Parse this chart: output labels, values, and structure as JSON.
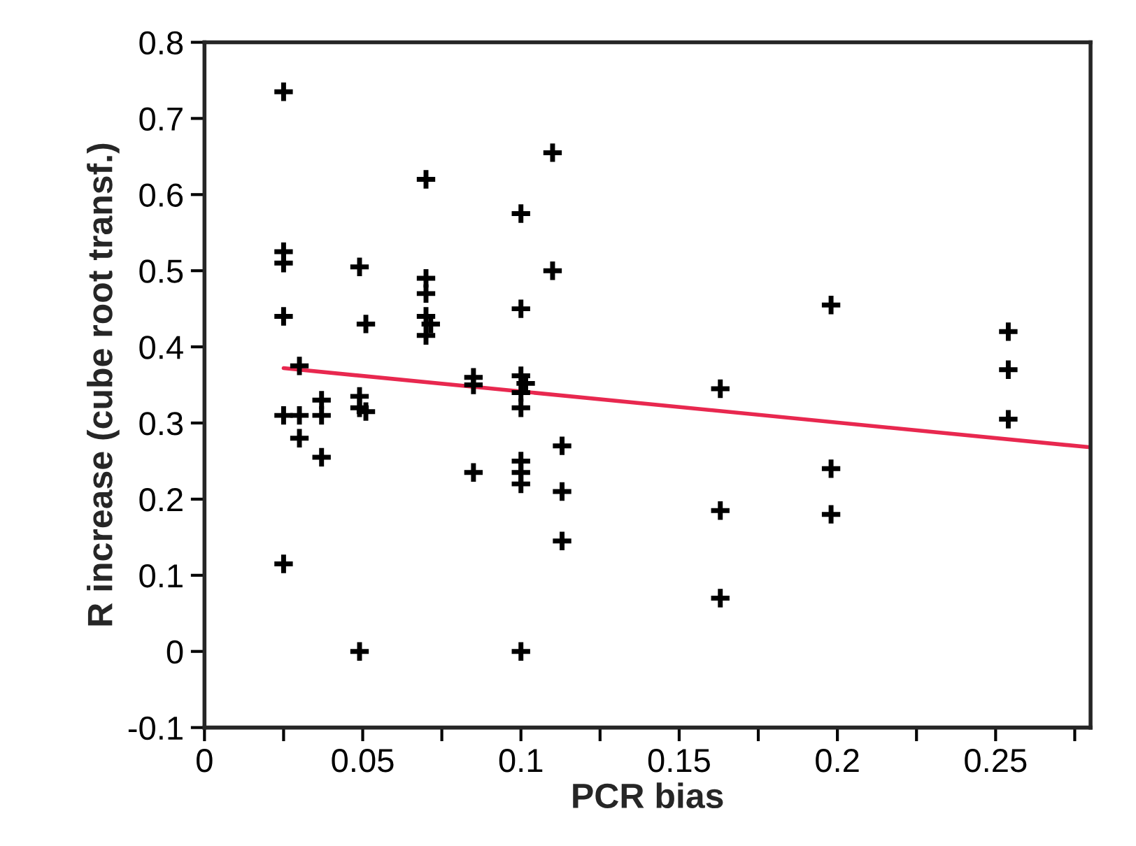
{
  "chart_data": {
    "type": "scatter",
    "xlabel": "PCR bias",
    "ylabel": "R increase (cube root transf.)",
    "xlim": [
      0,
      0.28
    ],
    "ylim": [
      -0.1,
      0.8
    ],
    "xticks": [
      0,
      {
        "value": 0.025,
        "label": null
      },
      0.05,
      {
        "value": 0.075,
        "label": null
      },
      0.1,
      {
        "value": 0.125,
        "label": null
      },
      0.15,
      {
        "value": 0.175,
        "label": null
      },
      0.2,
      {
        "value": 0.225,
        "label": null
      },
      0.25,
      {
        "value": 0.275,
        "label": null
      }
    ],
    "yticks": [
      -0.1,
      0,
      0.1,
      0.2,
      0.3,
      0.4,
      0.5,
      0.6,
      0.7,
      0.8
    ],
    "grid": false,
    "legend": false,
    "series": [
      {
        "type": "scatter",
        "marker": "cross",
        "color": "#000000",
        "x": [
          0.025,
          0.025,
          0.025,
          0.025,
          0.025,
          0.025,
          0.03,
          0.03,
          0.03,
          0.037,
          0.037,
          0.037,
          0.049,
          0.049,
          0.049,
          0.049,
          0.051,
          0.051,
          0.07,
          0.07,
          0.07,
          0.07,
          0.0715,
          0.07,
          0.085,
          0.085,
          0.085,
          0.1,
          0.1,
          0.1,
          0.1015,
          0.1,
          0.1,
          0.1,
          0.1,
          0.1,
          0.1,
          0.11,
          0.11,
          0.113,
          0.113,
          0.113,
          0.163,
          0.163,
          0.163,
          0.198,
          0.198,
          0.198,
          0.254,
          0.254,
          0.254
        ],
        "values": [
          0.735,
          0.525,
          0.51,
          0.44,
          0.31,
          0.115,
          0.375,
          0.31,
          0.28,
          0.33,
          0.31,
          0.255,
          0.505,
          0.335,
          0.32,
          0.0,
          0.43,
          0.315,
          0.62,
          0.49,
          0.47,
          0.44,
          0.43,
          0.415,
          0.36,
          0.35,
          0.235,
          0.575,
          0.45,
          0.362,
          0.352,
          0.34,
          0.32,
          0.25,
          0.235,
          0.22,
          0.0,
          0.655,
          0.5,
          0.27,
          0.21,
          0.145,
          0.345,
          0.185,
          0.07,
          0.455,
          0.24,
          0.18,
          0.42,
          0.37,
          0.305
        ]
      },
      {
        "type": "line",
        "color": "#e8284f",
        "line_style": "solid",
        "x": [
          0.025,
          0.28
        ],
        "values": [
          0.372,
          0.268
        ]
      }
    ]
  }
}
